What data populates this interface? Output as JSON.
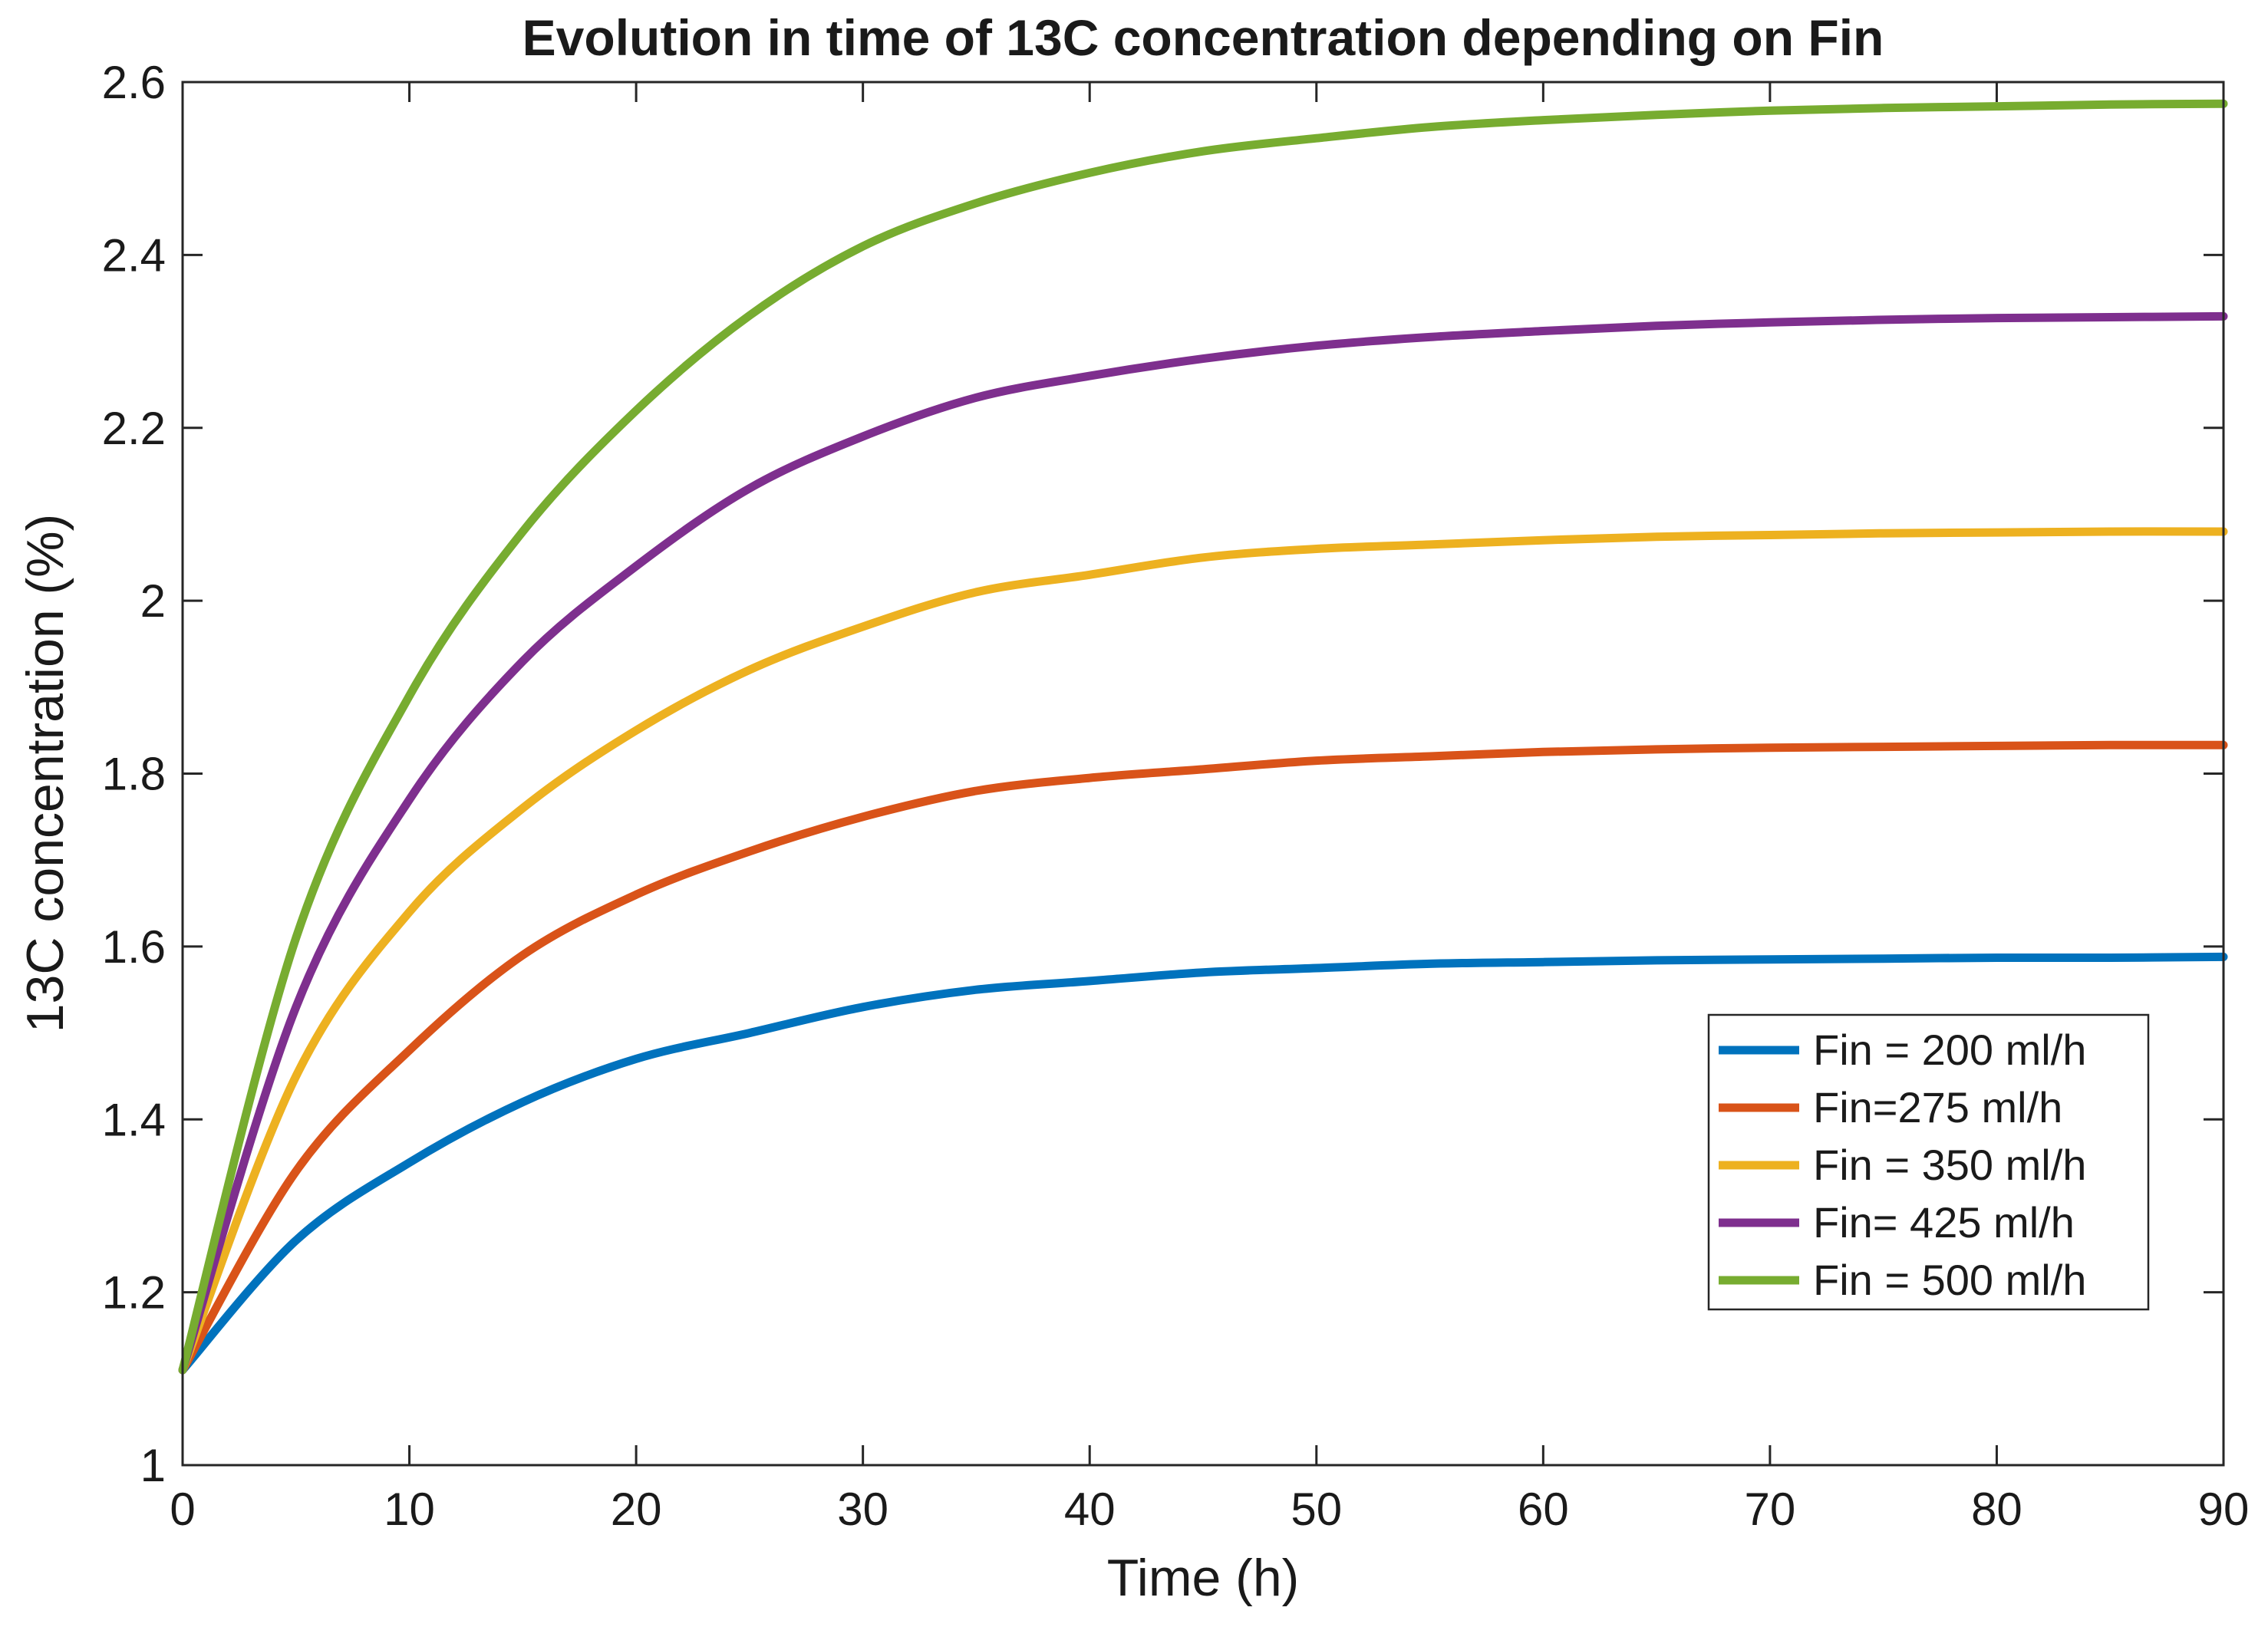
{
  "chart_data": {
    "type": "line",
    "title": "Evolution in time of 13C concentration depending on Fin",
    "xlabel": "Time (h)",
    "ylabel": "13C concentration (%)",
    "xlim": [
      0,
      90
    ],
    "ylim": [
      1,
      2.6
    ],
    "xticks": [
      0,
      10,
      20,
      30,
      40,
      50,
      60,
      70,
      80,
      90
    ],
    "yticks": [
      1,
      1.2,
      1.4,
      1.6,
      1.8,
      2,
      2.2,
      2.4,
      2.6
    ],
    "xtick_labels": [
      "0",
      "10",
      "20",
      "30",
      "40",
      "50",
      "60",
      "70",
      "80",
      "90"
    ],
    "ytick_labels": [
      "1",
      "1.2",
      "1.4",
      "1.6",
      "1.8",
      "2",
      "2.2",
      "2.4",
      "2.6"
    ],
    "grid": false,
    "legend_position": "bottom-right",
    "x": [
      0,
      5,
      10,
      15,
      20,
      25,
      30,
      35,
      40,
      45,
      50,
      55,
      60,
      65,
      70,
      75,
      80,
      85,
      90
    ],
    "series": [
      {
        "name": "Fin = 200 ml/h",
        "color": "#0072BD",
        "values": [
          1.11,
          1.26,
          1.35,
          1.42,
          1.47,
          1.5,
          1.53,
          1.55,
          1.56,
          1.57,
          1.575,
          1.58,
          1.582,
          1.584,
          1.585,
          1.586,
          1.587,
          1.587,
          1.588
        ]
      },
      {
        "name": "Fin=275 ml/h",
        "color": "#D95319",
        "values": [
          1.11,
          1.34,
          1.48,
          1.59,
          1.66,
          1.71,
          1.75,
          1.78,
          1.795,
          1.805,
          1.815,
          1.82,
          1.825,
          1.828,
          1.83,
          1.831,
          1.832,
          1.833,
          1.833
        ]
      },
      {
        "name": "Fin = 350 ml/h",
        "color": "#EDB120",
        "values": [
          1.11,
          1.45,
          1.64,
          1.76,
          1.85,
          1.92,
          1.97,
          2.01,
          2.03,
          2.05,
          2.06,
          2.065,
          2.07,
          2.074,
          2.076,
          2.078,
          2.079,
          2.08,
          2.08
        ]
      },
      {
        "name": "Fin= 425 ml/h",
        "color": "#7E2F8E",
        "values": [
          1.11,
          1.53,
          1.77,
          1.93,
          2.04,
          2.13,
          2.19,
          2.235,
          2.26,
          2.28,
          2.295,
          2.305,
          2.312,
          2.318,
          2.322,
          2.325,
          2.327,
          2.328,
          2.329
        ]
      },
      {
        "name": "Fin = 500 ml/h",
        "color": "#77AC30",
        "values": [
          1.11,
          1.61,
          1.89,
          2.08,
          2.22,
          2.33,
          2.41,
          2.46,
          2.495,
          2.52,
          2.535,
          2.548,
          2.556,
          2.562,
          2.567,
          2.57,
          2.572,
          2.574,
          2.575
        ]
      }
    ]
  }
}
